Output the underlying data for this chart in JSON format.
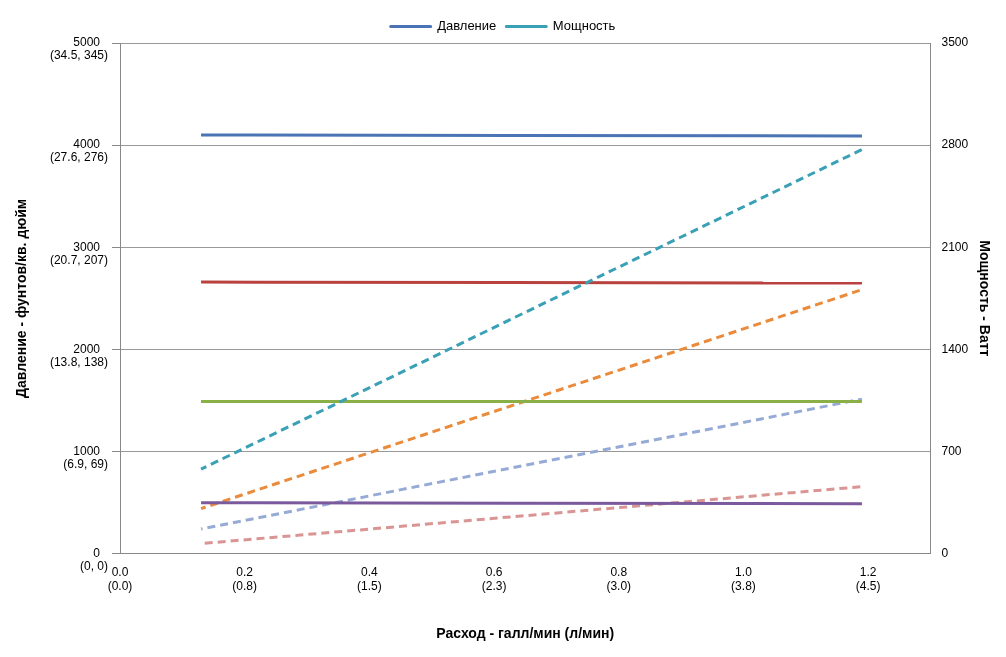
{
  "chart_data": {
    "type": "line",
    "xlabel": "Расход - галл/мин (л/мин)",
    "ylabel": "Давление - фунтов/кв. дюйм",
    "y2label": "Мощность - Ватт",
    "xlim": [
      0,
      1.3
    ],
    "xticks": [
      {
        "value": 0,
        "label": "0.0"
      },
      {
        "value": 0.2,
        "label": "0.2"
      },
      {
        "value": 0.4,
        "label": "0.4"
      },
      {
        "value": 0.6,
        "label": "0.6"
      },
      {
        "value": 0.8,
        "label": "0.8"
      },
      {
        "value": 1.0,
        "label": "1.0"
      },
      {
        "value": 1.2,
        "label": "1.2"
      }
    ],
    "ylim": [
      0,
      5000
    ],
    "yticks": [
      0,
      1000,
      2000,
      3000,
      4000,
      5000
    ],
    "annotations": [
      "(0.0)",
      "(0.8)",
      "(1.5)",
      "(2.3)",
      "(3.0)",
      "(3.8)",
      "(4.5)",
      "(0, 0)",
      "(6.9, 69)",
      "(13.8, 138)",
      "(20.7, 207)",
      "(27.6, 276)",
      "(34.5, 345)"
    ],
    "y2lim": [
      0,
      3500
    ],
    "y2ticks": [
      0,
      700,
      1400,
      2100,
      2800,
      3500
    ],
    "grid": "y",
    "legend": "top",
    "marker": "none",
    "x": [
      0.13,
      1.19
    ],
    "series": [
      {
        "name": "Давление",
        "color": "#4a74b4",
        "values": [
          4100,
          4090
        ],
        "line_style": "solid"
      },
      {
        "name": "Мощность",
        "color": "#3aa0b6",
        "values": [
          580,
          2770
        ],
        "axis": "y2",
        "line_style": "dashed"
      },
      {
        "color": "#b9423f",
        "values": [
          2660,
          2650
        ],
        "line_style": "solid"
      },
      {
        "color": "#8aaf47",
        "values": [
          1490,
          1490
        ],
        "line_style": "solid"
      },
      {
        "color": "#7a5a9d",
        "values": [
          500,
          490
        ],
        "line_style": "solid"
      },
      {
        "color": "#ea8a3b",
        "values": [
          310,
          1810
        ],
        "axis": "y2",
        "line_style": "dashed"
      },
      {
        "color": "#96aad6",
        "values": [
          170,
          1060
        ],
        "axis": "y2",
        "line_style": "dashed"
      },
      {
        "color": "#d99593",
        "values": [
          70,
          460
        ],
        "axis": "y2",
        "line_style": "dashed"
      }
    ]
  }
}
